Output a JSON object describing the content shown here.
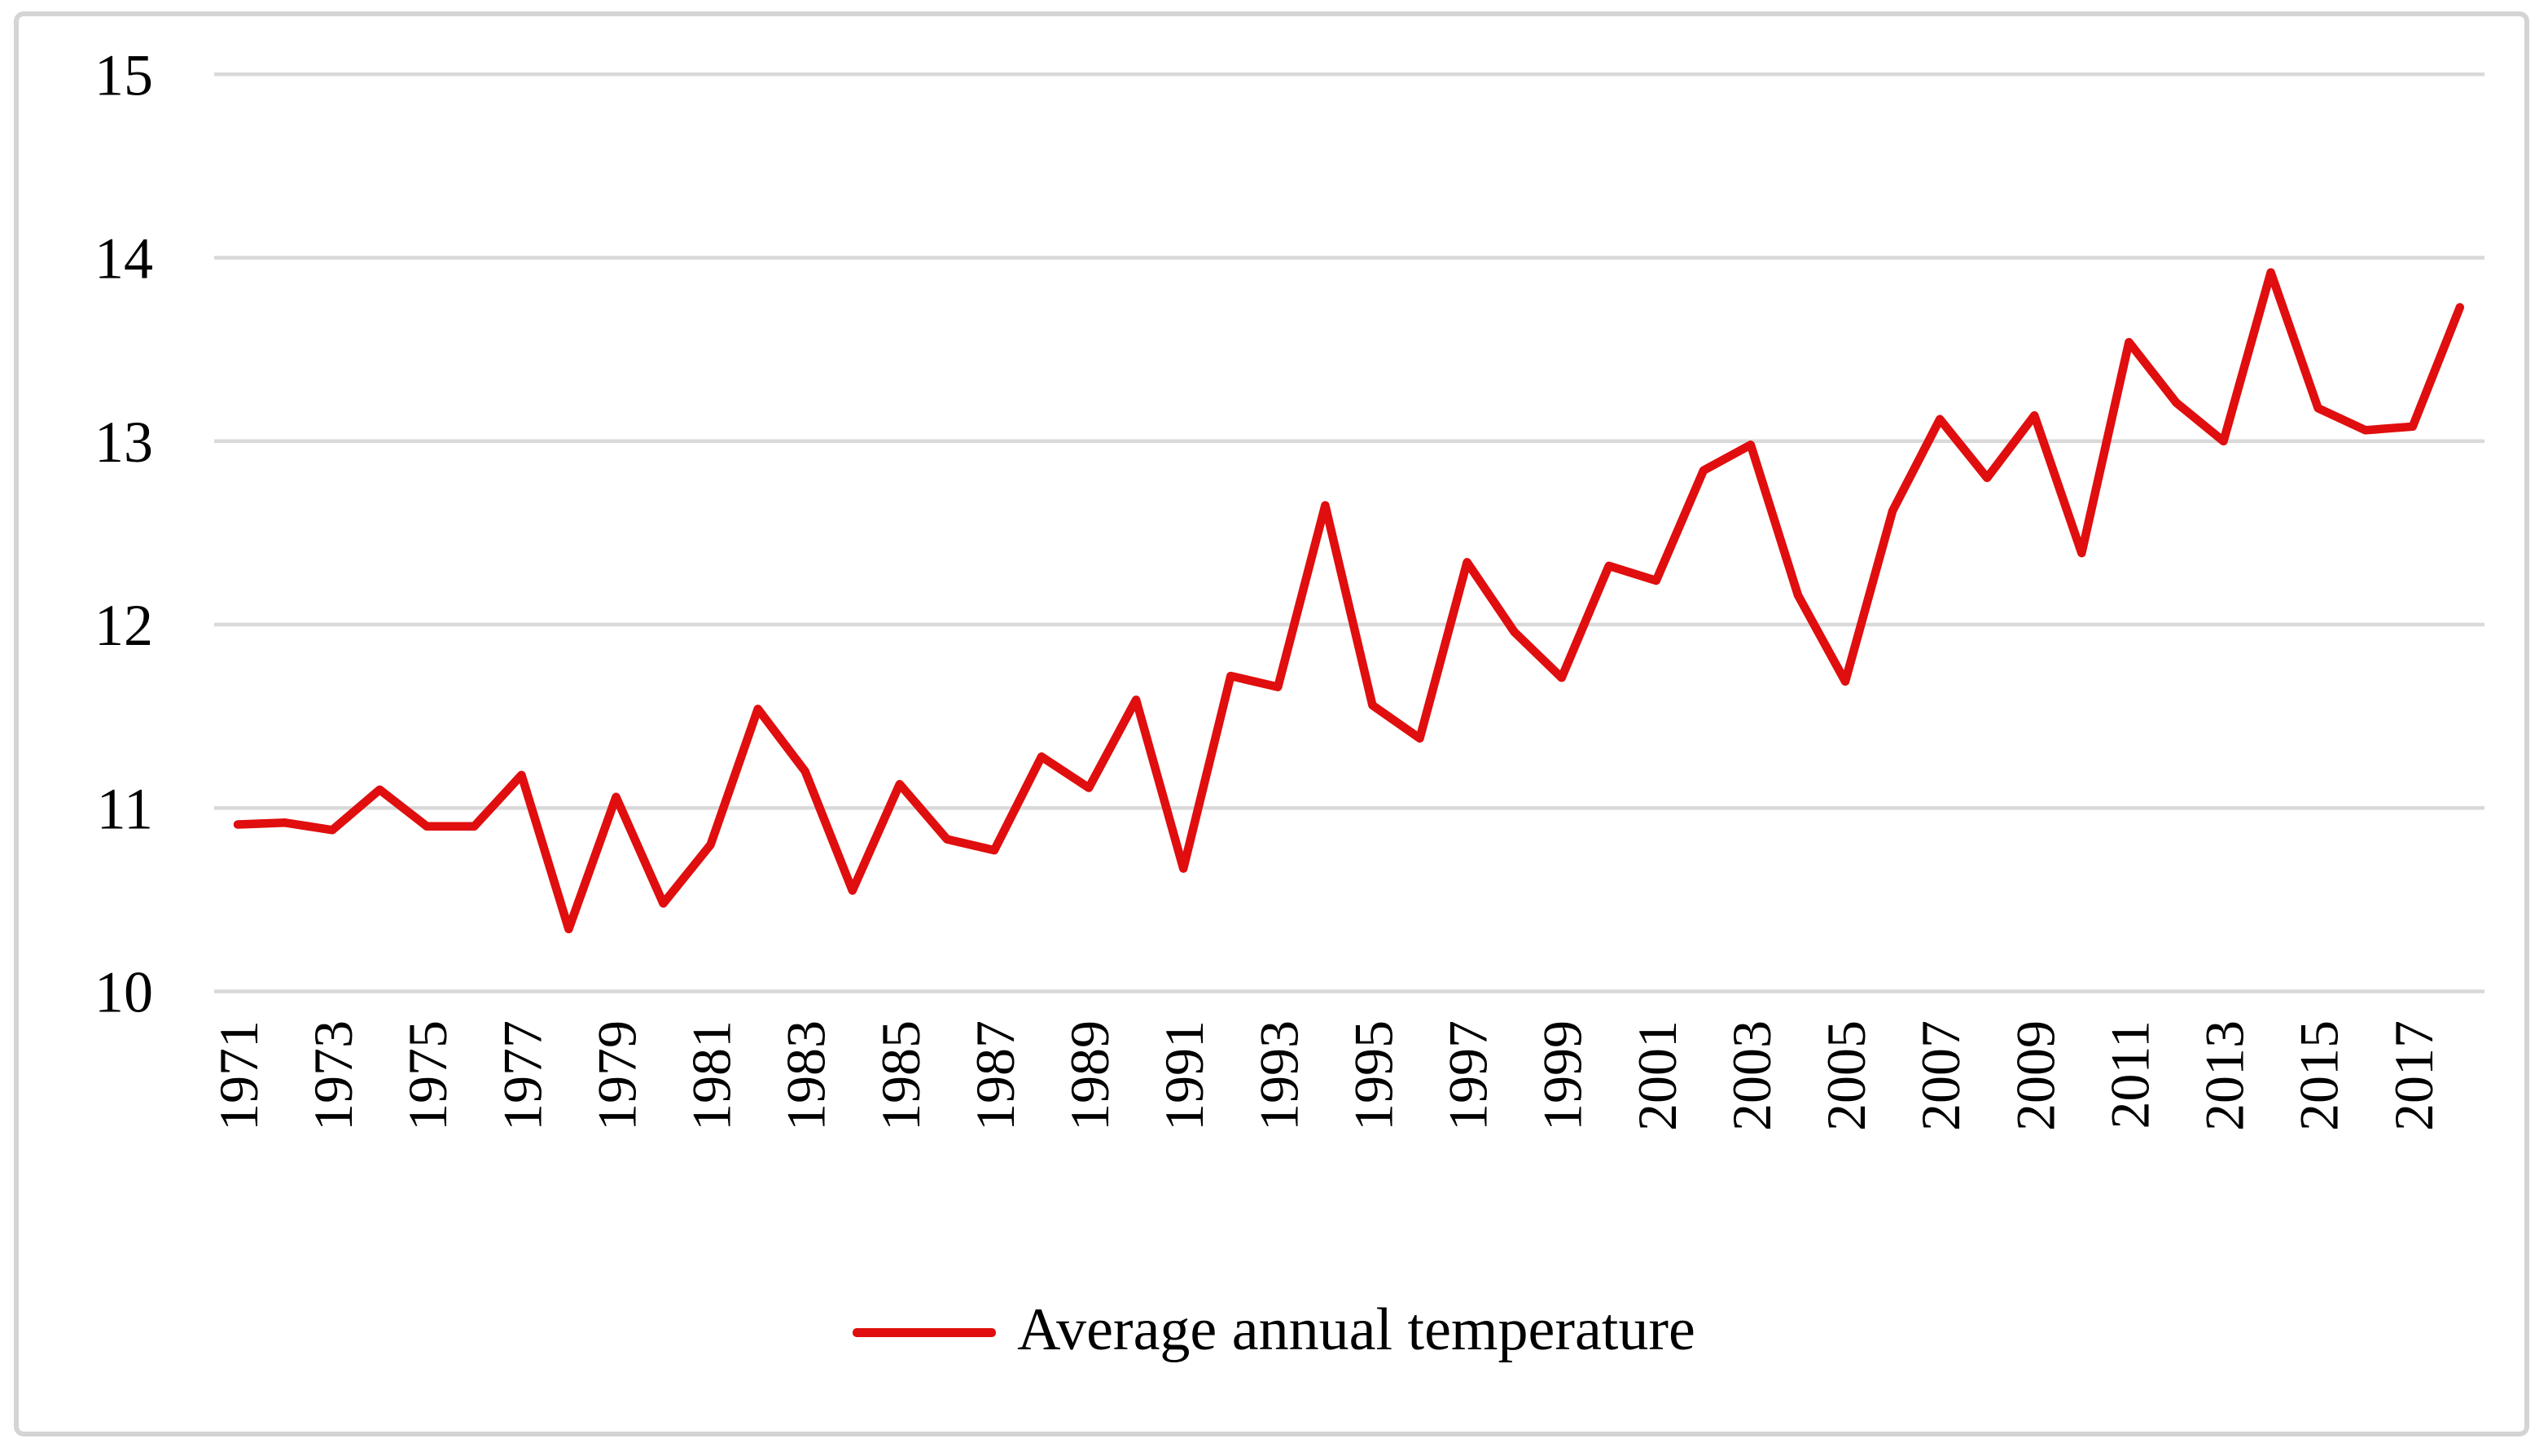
{
  "figure": {
    "background_color": "#ffffff",
    "border_color": "#d4d4d4"
  },
  "legend": {
    "label": "Average annual temperature",
    "swatch_color": "#e00e0e"
  },
  "chart_data": {
    "type": "line",
    "title": "",
    "xlabel": "",
    "ylabel": "",
    "grid": "horizontal",
    "gridline_color": "#d9d9d9",
    "legend_position": "bottom-center",
    "ylim": [
      10,
      15
    ],
    "y_ticks": [
      15,
      14,
      13,
      12,
      11,
      10
    ],
    "x_start": 1971,
    "x_end": 2018,
    "x_tick_labels": [
      "1971",
      "1973",
      "1975",
      "1977",
      "1979",
      "1981",
      "1983",
      "1985",
      "1987",
      "1989",
      "1991",
      "1993",
      "1995",
      "1997",
      "1999",
      "2001",
      "2003",
      "2005",
      "2007",
      "2009",
      "2011",
      "2013",
      "2015",
      "2017"
    ],
    "series": [
      {
        "name": "Average annual temperature",
        "color": "#e00e0e",
        "x": [
          1971,
          1972,
          1973,
          1974,
          1975,
          1976,
          1977,
          1978,
          1979,
          1980,
          1981,
          1982,
          1983,
          1984,
          1985,
          1986,
          1987,
          1988,
          1989,
          1990,
          1991,
          1992,
          1993,
          1994,
          1995,
          1996,
          1997,
          1998,
          1999,
          2000,
          2001,
          2002,
          2003,
          2004,
          2005,
          2006,
          2007,
          2008,
          2009,
          2010,
          2011,
          2012,
          2013,
          2014,
          2015,
          2016,
          2017,
          2018
        ],
        "values": [
          10.91,
          10.92,
          10.88,
          11.1,
          10.9,
          10.9,
          11.18,
          10.34,
          11.06,
          10.48,
          10.8,
          11.54,
          11.2,
          10.55,
          11.13,
          10.83,
          10.77,
          11.28,
          11.11,
          11.59,
          10.67,
          11.72,
          11.66,
          12.65,
          11.56,
          11.38,
          12.34,
          11.96,
          11.71,
          12.32,
          12.24,
          12.84,
          12.98,
          12.16,
          11.69,
          12.62,
          13.12,
          12.8,
          13.14,
          12.39,
          13.54,
          13.21,
          13.0,
          13.92,
          13.18,
          13.06,
          13.08,
          13.73
        ]
      }
    ]
  }
}
